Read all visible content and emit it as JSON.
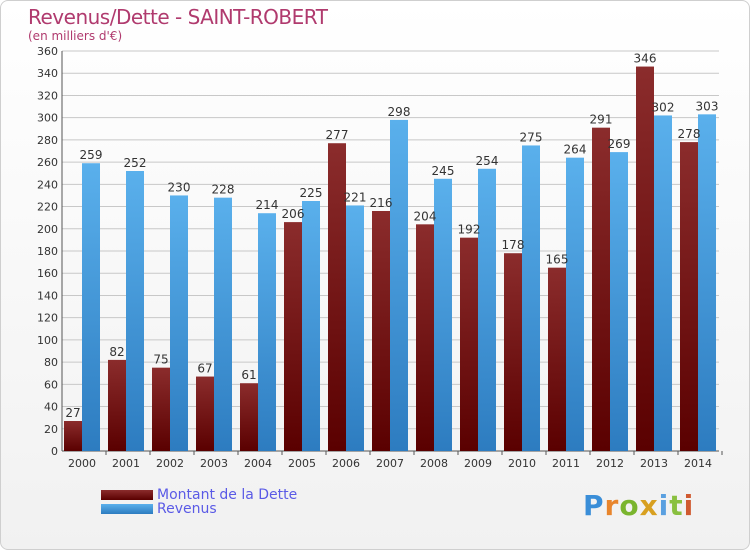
{
  "header": {
    "title": "Revenus/Dette - SAINT-ROBERT",
    "subtitle": "(en milliers d'€)"
  },
  "legend": {
    "debt_label": "Montant de la Dette",
    "revenue_label": "Revenus"
  },
  "logo": {
    "text": "Proxiti"
  },
  "colors": {
    "debt_top": "#8b2c2c",
    "debt_bottom": "#5a0000",
    "revenue_top": "#5ab0ec",
    "revenue_bottom": "#2d7cc0",
    "grid": "#c8c8c8",
    "title": "#b03a6e",
    "legend_text": "#5a5ae6"
  },
  "chart_data": {
    "type": "bar",
    "categories": [
      "2000",
      "2001",
      "2002",
      "2003",
      "2004",
      "2005",
      "2006",
      "2007",
      "2008",
      "2009",
      "2010",
      "2011",
      "2012",
      "2013",
      "2014"
    ],
    "series": [
      {
        "name": "Montant de la Dette",
        "values": [
          27,
          82,
          75,
          67,
          61,
          206,
          277,
          216,
          204,
          192,
          178,
          165,
          291,
          346,
          278
        ]
      },
      {
        "name": "Revenus",
        "values": [
          259,
          252,
          230,
          228,
          214,
          225,
          221,
          298,
          245,
          254,
          275,
          264,
          269,
          302,
          303
        ]
      }
    ],
    "title": "Revenus/Dette - SAINT-ROBERT",
    "subtitle": "(en milliers d'€)",
    "xlabel": "",
    "ylabel": "",
    "ylim": [
      0,
      360
    ],
    "yticks": [
      0,
      20,
      40,
      60,
      80,
      100,
      120,
      140,
      160,
      180,
      200,
      220,
      240,
      260,
      280,
      300,
      320,
      340,
      360
    ],
    "grid": true,
    "legend_position": "bottom-left"
  }
}
